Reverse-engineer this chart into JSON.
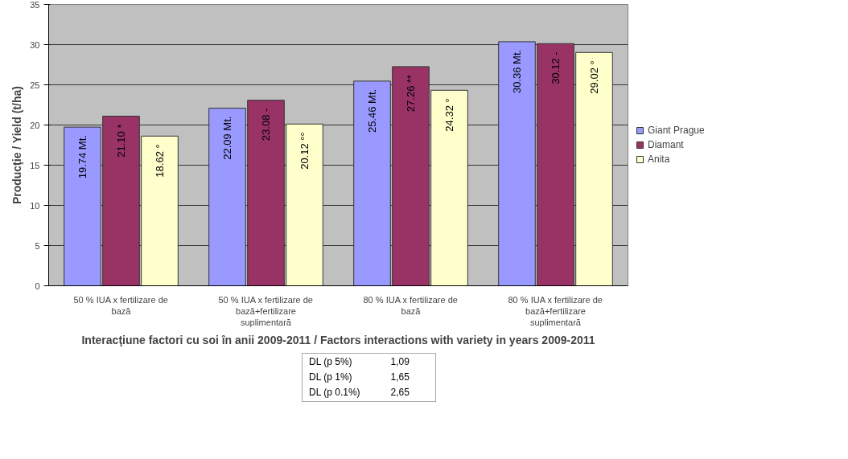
{
  "chart_data": {
    "type": "bar",
    "xlabel": "Interacţiune factori cu soi în anii 2009-2011 / Factors interactions with variety in years 2009-2011",
    "ylabel": "Producţie / Yield (t/ha)",
    "categories": [
      "50 % IUA x fertilizare de bază",
      "50 % IUA x fertilizare de bază+fertilizare suplimentară",
      "80 % IUA x fertilizare de bază",
      "80 % IUA x fertilizare de bază+fertilizare suplimentară"
    ],
    "series": [
      {
        "name": "Giant Prague",
        "color": "#9999ff",
        "values": [
          19.74,
          22.09,
          25.46,
          30.36
        ],
        "value_labels": [
          "19.74 Mt.",
          "22.09 Mt.",
          "25.46 Mt.",
          "30.36 Mt."
        ]
      },
      {
        "name": "Diamant",
        "color": "#993366",
        "values": [
          21.1,
          23.08,
          27.26,
          30.12
        ],
        "value_labels": [
          "21.10 *",
          "23.08 -",
          "27.26 **",
          "30.12 -"
        ]
      },
      {
        "name": "Anita",
        "color": "#ffffcc",
        "values": [
          18.62,
          20.12,
          24.32,
          29.02
        ],
        "value_labels": [
          "18.62 °",
          "20.12 °°",
          "24.32 °",
          "29.02 °"
        ]
      }
    ],
    "ylim": [
      0,
      35
    ],
    "yticks": [
      0,
      5,
      10,
      15,
      20,
      25,
      30,
      35
    ],
    "grid": "y",
    "legend": "right",
    "annotations": [
      "DL (p 5%)\t1,09",
      "DL (p 1%)\t1,65",
      "DL (p 0.1%)\t2,65"
    ]
  }
}
